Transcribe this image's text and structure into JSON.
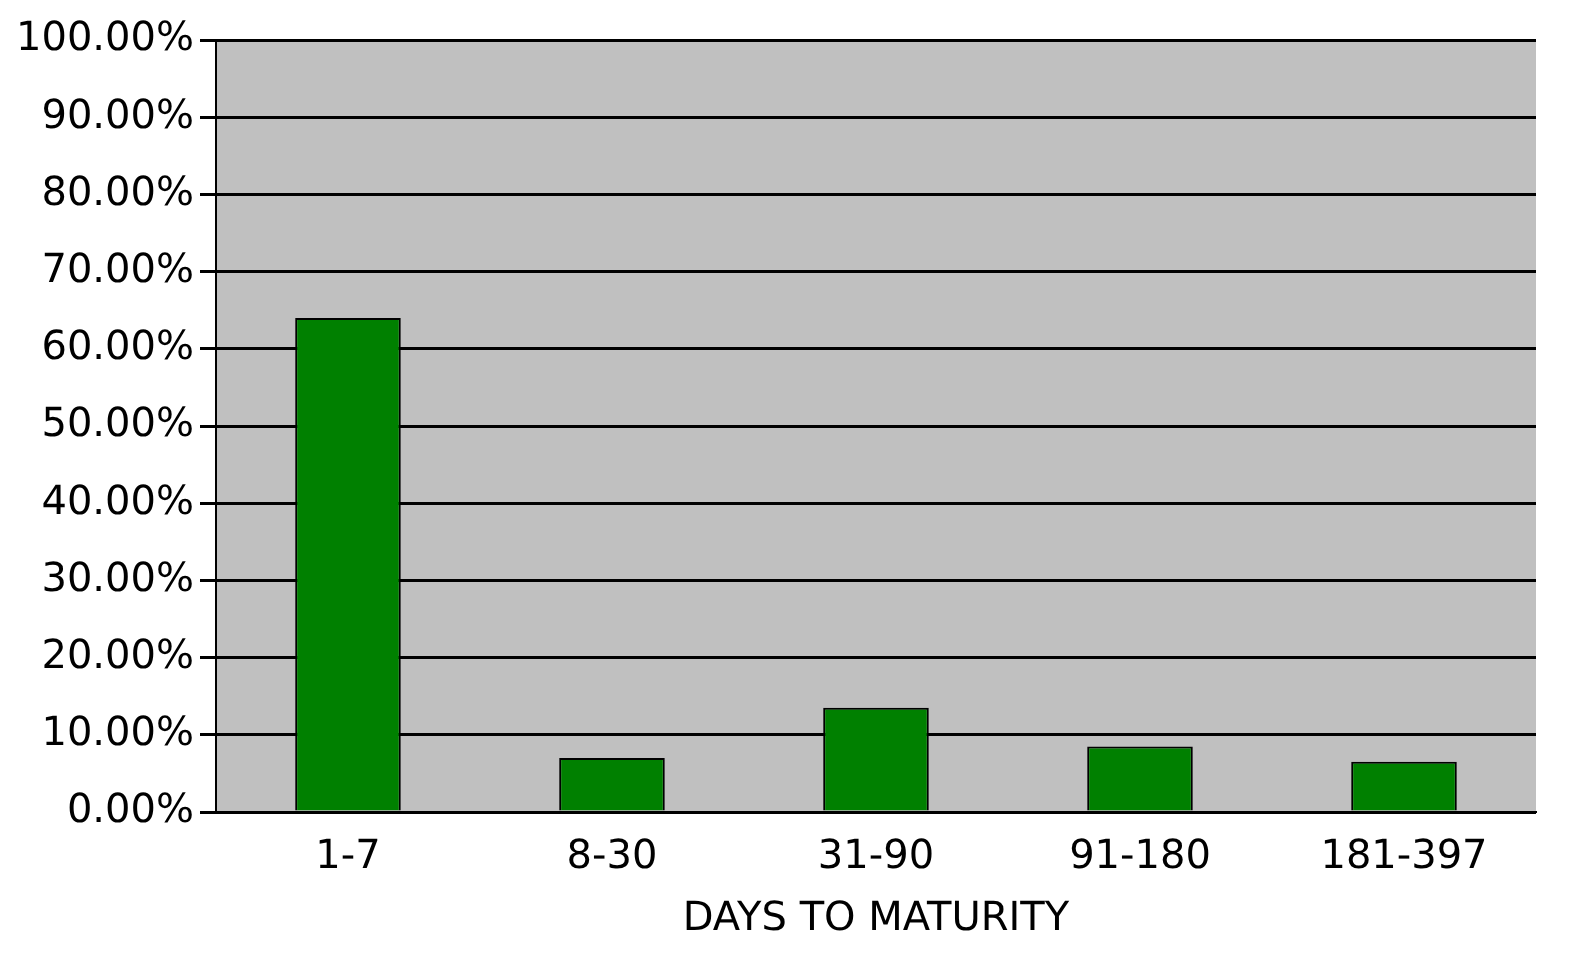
{
  "chart_data": {
    "type": "bar",
    "xlabel": "DAYS TO MATURITY",
    "categories": [
      "1-7",
      "8-30",
      "31-90",
      "91-180",
      "181-397"
    ],
    "values": [
      64,
      7,
      13.5,
      8.5,
      6.5
    ],
    "color": "#008000",
    "ylim": [
      0,
      100
    ],
    "yticks": [
      {
        "value": 0,
        "label": "0.00%"
      },
      {
        "value": 10,
        "label": "10.00%"
      },
      {
        "value": 20,
        "label": "20.00%"
      },
      {
        "value": 30,
        "label": "30.00%"
      },
      {
        "value": 40,
        "label": "40.00%"
      },
      {
        "value": 50,
        "label": "50.00%"
      },
      {
        "value": 60,
        "label": "60.00%"
      },
      {
        "value": 70,
        "label": "70.00%"
      },
      {
        "value": 80,
        "label": "80.00%"
      },
      {
        "value": 90,
        "label": "90.00%"
      },
      {
        "value": 100,
        "label": "100.00%"
      }
    ],
    "grid": "y"
  }
}
